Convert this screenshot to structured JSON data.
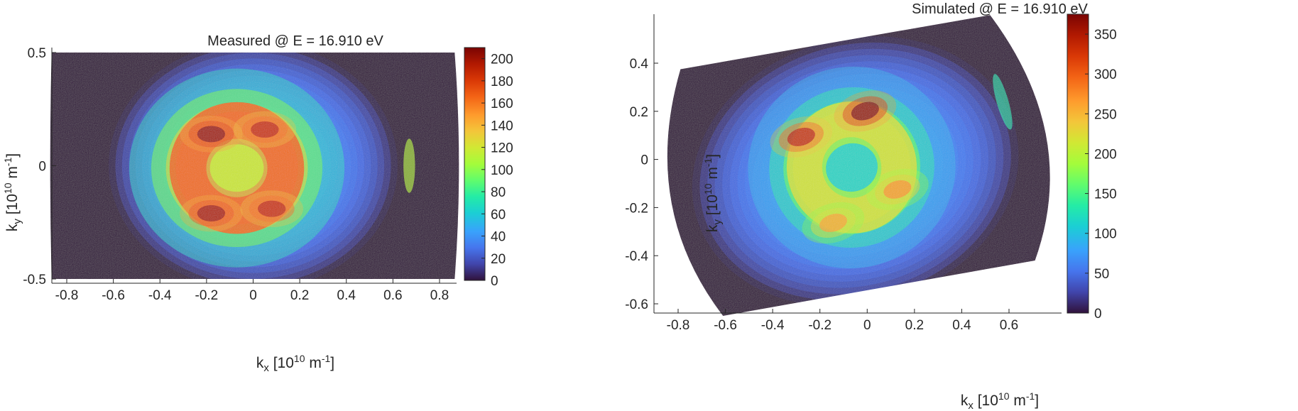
{
  "chart_data": [
    {
      "type": "heatmap",
      "title": "Measured @ E = 16.910 eV",
      "xlabel": {
        "base": "k",
        "sub": "x",
        "unit_prefix": " [10",
        "exp": "10",
        "unit": " m",
        "unit_exp": "-1",
        "close": "]"
      },
      "ylabel": {
        "base": "k",
        "sub": "y",
        "unit_prefix": " [10",
        "exp": "10",
        "unit": " m",
        "unit_exp": "-1",
        "close": "]"
      },
      "xlim": [
        -0.88,
        0.88
      ],
      "ylim": [
        -0.52,
        0.52
      ],
      "xticks": [
        -0.8,
        -0.6,
        -0.4,
        -0.2,
        0,
        0.2,
        0.4,
        0.6,
        0.8
      ],
      "xtick_labels": [
        "-0.8",
        "-0.6",
        "-0.4",
        "-0.2",
        "0",
        "0.2",
        "0.4",
        "0.6",
        "0.8"
      ],
      "yticks": [
        -0.5,
        0,
        0.5
      ],
      "ytick_labels": [
        "-0.5",
        "0",
        "0.5"
      ],
      "colorbar": {
        "min": 0,
        "max": 210,
        "ticks": [
          0,
          20,
          40,
          60,
          80,
          100,
          120,
          140,
          160,
          180,
          200
        ],
        "tick_labels": [
          "0",
          "20",
          "40",
          "60",
          "80",
          "100",
          "120",
          "140",
          "160",
          "180",
          "200"
        ]
      },
      "colormap": "turbo",
      "intensity_features": {
        "background_halo": {
          "center": [
            0.0,
            0.0
          ],
          "radius_x": 0.62,
          "radius_y": 0.55,
          "peak": 45
        },
        "ring": {
          "center": [
            -0.07,
            -0.01
          ],
          "radius": 0.21,
          "peak": 195
        },
        "bright_lobes": [
          {
            "kx": -0.18,
            "ky": 0.14,
            "value": 205
          },
          {
            "kx": 0.05,
            "ky": 0.16,
            "value": 190
          },
          {
            "kx": -0.18,
            "ky": -0.21,
            "value": 200
          },
          {
            "kx": 0.08,
            "ky": -0.19,
            "value": 190
          }
        ],
        "edge_bright": {
          "kx": 0.67,
          "ky": 0.0,
          "value": 110
        }
      }
    },
    {
      "type": "heatmap",
      "title": "Simulated @ E = 16.910 eV",
      "xlabel": {
        "base": "k",
        "sub": "x",
        "unit_prefix": " [10",
        "exp": "10",
        "unit": " m",
        "unit_exp": "-1",
        "close": "]"
      },
      "ylabel": {
        "base": "k",
        "sub": "y",
        "unit_prefix": " [10",
        "exp": "10",
        "unit": " m",
        "unit_exp": "-1",
        "close": "]"
      },
      "xlim": [
        -0.9,
        0.8
      ],
      "ylim": [
        -0.65,
        0.6
      ],
      "xticks": [
        -0.8,
        -0.6,
        -0.4,
        -0.2,
        0,
        0.2,
        0.4,
        0.6
      ],
      "xtick_labels": [
        "-0.8",
        "-0.6",
        "-0.4",
        "-0.2",
        "0",
        "0.2",
        "0.4",
        "0.6"
      ],
      "yticks": [
        -0.6,
        -0.4,
        -0.2,
        0,
        0.2,
        0.4
      ],
      "ytick_labels": [
        "-0.6",
        "-0.4",
        "-0.2",
        "0",
        "0.2",
        "0.4"
      ],
      "colorbar": {
        "min": 0,
        "max": 375,
        "ticks": [
          0,
          50,
          100,
          150,
          200,
          250,
          300,
          350
        ],
        "tick_labels": [
          "0",
          "50",
          "100",
          "150",
          "200",
          "250",
          "300",
          "350"
        ]
      },
      "colormap": "turbo",
      "rotation_deg": -16,
      "intensity_features": {
        "background_halo": {
          "center": [
            -0.05,
            -0.05
          ],
          "radius_x": 0.7,
          "radius_y": 0.55,
          "peak": 80
        },
        "ring": {
          "center": [
            -0.06,
            -0.03
          ],
          "radius": 0.2,
          "peak": 260
        },
        "center_dip": {
          "kx": -0.06,
          "ky": -0.03,
          "value": 110
        },
        "bright_lobes": [
          {
            "kx": -0.23,
            "ky": 0.15,
            "value": 340
          },
          {
            "kx": 0.06,
            "ky": 0.18,
            "value": 370
          },
          {
            "kx": -0.2,
            "ky": -0.23,
            "value": 260
          },
          {
            "kx": 0.1,
            "ky": -0.17,
            "value": 270
          }
        ],
        "edge_bright": {
          "kx": 0.63,
          "ky": 0.06,
          "value": 130
        }
      }
    }
  ]
}
